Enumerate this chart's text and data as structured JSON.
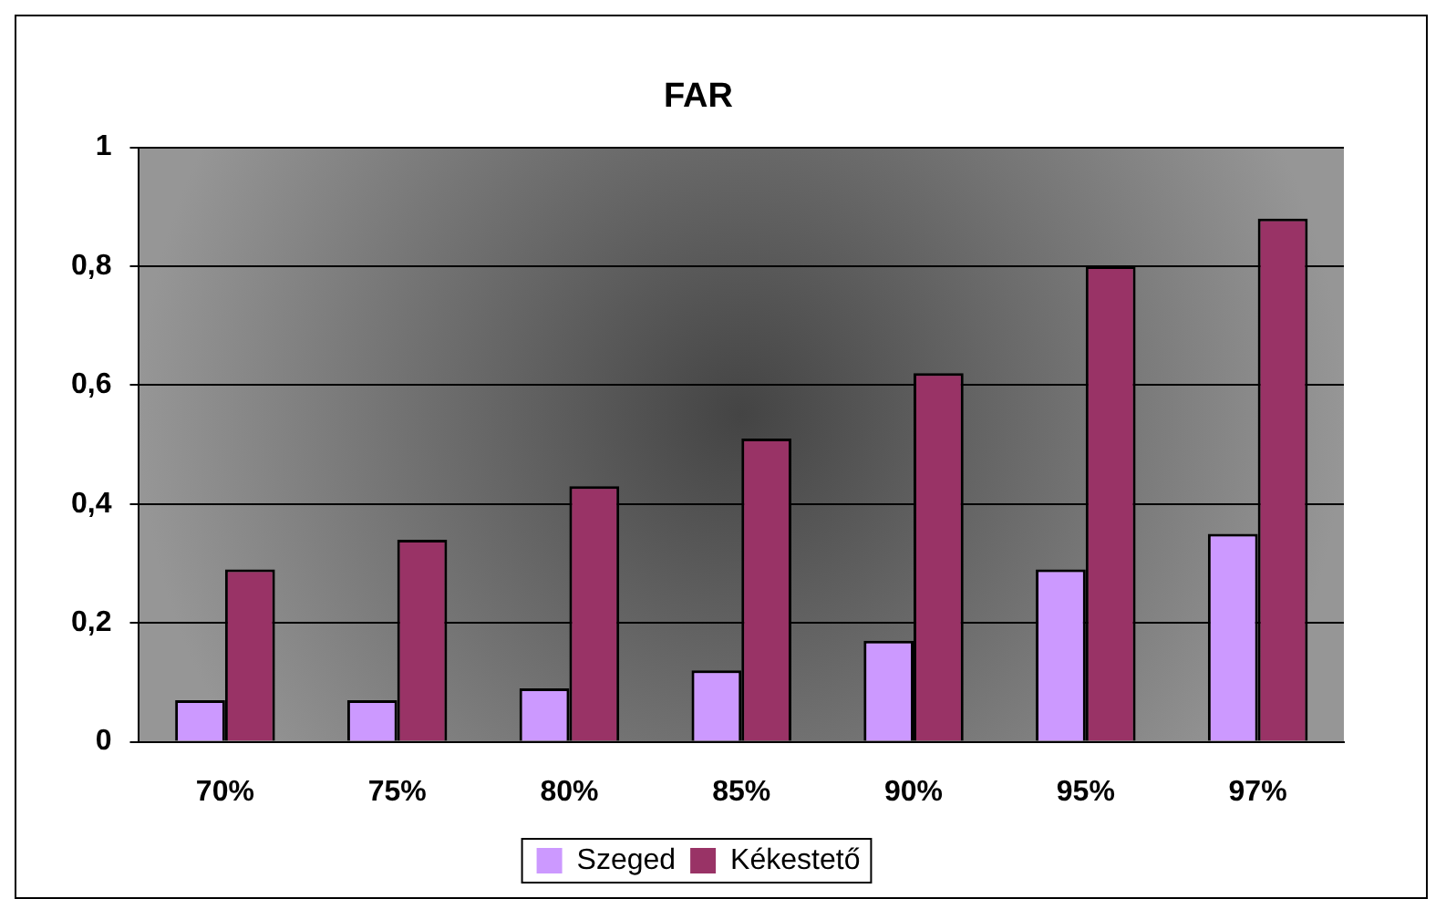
{
  "chart_data": {
    "type": "bar",
    "title": "FAR",
    "categories": [
      "70%",
      "75%",
      "80%",
      "85%",
      "90%",
      "95%",
      "97%"
    ],
    "series": [
      {
        "name": "Szeged",
        "color": "#cc99ff",
        "values": [
          0.07,
          0.07,
          0.09,
          0.12,
          0.17,
          0.29,
          0.35
        ]
      },
      {
        "name": "Kékestető",
        "color": "#993366",
        "values": [
          0.29,
          0.34,
          0.43,
          0.51,
          0.62,
          0.8,
          0.88
        ]
      }
    ],
    "ylim": [
      0,
      1
    ],
    "yticks": [
      0,
      {
        "value": 0.2,
        "label": "0,2"
      },
      {
        "value": 0.4,
        "label": "0,4"
      },
      {
        "value": 0.6,
        "label": "0,6"
      },
      {
        "value": 0.8,
        "label": "0,8"
      },
      1
    ],
    "grid": "y",
    "legend": "bottom"
  }
}
